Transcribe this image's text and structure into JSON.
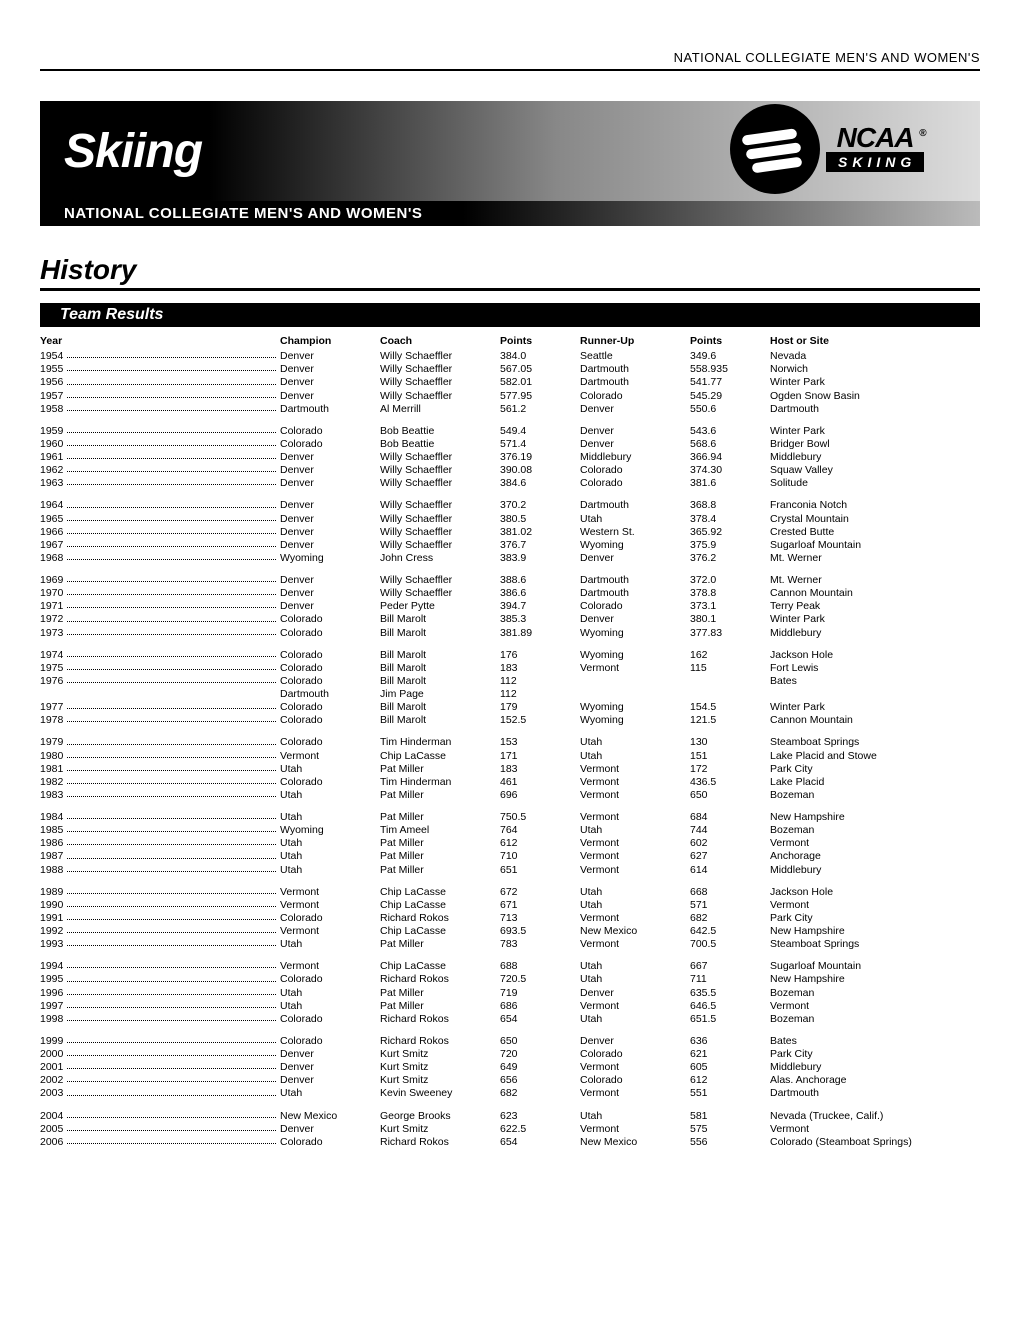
{
  "top_label": "NATIONAL COLLEGIATE MEN'S AND WOMEN'S",
  "banner_title": "Skiing",
  "subbanner": "NATIONAL COLLEGIATE MEN'S AND WOMEN'S",
  "logo_top": "NCAA",
  "logo_bottom": "SKIING",
  "section_title": "History",
  "subsection": "Team Results",
  "columns": [
    "Year",
    "Champion",
    "Coach",
    "Points",
    "Runner-Up",
    "Points",
    "Host or Site"
  ],
  "colors": {
    "text": "#000000",
    "bg": "#ffffff",
    "banner_dark": "#000000",
    "banner_light": "#dddddd"
  },
  "groups": [
    [
      [
        "1954",
        "Denver",
        "Willy Schaeffler",
        "384.0",
        "Seattle",
        "349.6",
        "Nevada"
      ],
      [
        "1955",
        "Denver",
        "Willy Schaeffler",
        "567.05",
        "Dartmouth",
        "558.935",
        "Norwich"
      ],
      [
        "1956",
        "Denver",
        "Willy Schaeffler",
        "582.01",
        "Dartmouth",
        "541.77",
        "Winter Park"
      ],
      [
        "1957",
        "Denver",
        "Willy Schaeffler",
        "577.95",
        "Colorado",
        "545.29",
        "Ogden Snow Basin"
      ],
      [
        "1958",
        "Dartmouth",
        "Al Merrill",
        "561.2",
        "Denver",
        "550.6",
        "Dartmouth"
      ]
    ],
    [
      [
        "1959",
        "Colorado",
        "Bob Beattie",
        "549.4",
        "Denver",
        "543.6",
        "Winter Park"
      ],
      [
        "1960",
        "Colorado",
        "Bob Beattie",
        "571.4",
        "Denver",
        "568.6",
        "Bridger Bowl"
      ],
      [
        "1961",
        "Denver",
        "Willy Schaeffler",
        "376.19",
        "Middlebury",
        "366.94",
        "Middlebury"
      ],
      [
        "1962",
        "Denver",
        "Willy Schaeffler",
        "390.08",
        "Colorado",
        "374.30",
        "Squaw Valley"
      ],
      [
        "1963",
        "Denver",
        "Willy Schaeffler",
        "384.6",
        "Colorado",
        "381.6",
        "Solitude"
      ]
    ],
    [
      [
        "1964",
        "Denver",
        "Willy Schaeffler",
        "370.2",
        "Dartmouth",
        "368.8",
        "Franconia Notch"
      ],
      [
        "1965",
        "Denver",
        "Willy Schaeffler",
        "380.5",
        "Utah",
        "378.4",
        "Crystal Mountain"
      ],
      [
        "1966",
        "Denver",
        "Willy Schaeffler",
        "381.02",
        "Western St.",
        "365.92",
        "Crested Butte"
      ],
      [
        "1967",
        "Denver",
        "Willy Schaeffler",
        "376.7",
        "Wyoming",
        "375.9",
        "Sugarloaf Mountain"
      ],
      [
        "1968",
        "Wyoming",
        "John Cress",
        "383.9",
        "Denver",
        "376.2",
        "Mt. Werner"
      ]
    ],
    [
      [
        "1969",
        "Denver",
        "Willy Schaeffler",
        "388.6",
        "Dartmouth",
        "372.0",
        "Mt. Werner"
      ],
      [
        "1970",
        "Denver",
        "Willy Schaeffler",
        "386.6",
        "Dartmouth",
        "378.8",
        "Cannon Mountain"
      ],
      [
        "1971",
        "Denver",
        "Peder Pytte",
        "394.7",
        "Colorado",
        "373.1",
        "Terry Peak"
      ],
      [
        "1972",
        "Colorado",
        "Bill Marolt",
        "385.3",
        "Denver",
        "380.1",
        "Winter Park"
      ],
      [
        "1973",
        "Colorado",
        "Bill Marolt",
        "381.89",
        "Wyoming",
        "377.83",
        "Middlebury"
      ]
    ],
    [
      [
        "1974",
        "Colorado",
        "Bill Marolt",
        "176",
        "Wyoming",
        "162",
        "Jackson Hole"
      ],
      [
        "1975",
        "Colorado",
        "Bill Marolt",
        "183",
        "Vermont",
        "115",
        "Fort Lewis"
      ],
      [
        "1976",
        "Colorado",
        "Bill Marolt",
        "112",
        "",
        "",
        "Bates"
      ],
      [
        "",
        "Dartmouth",
        "Jim Page",
        "112",
        "",
        "",
        ""
      ],
      [
        "1977",
        "Colorado",
        "Bill Marolt",
        "179",
        "Wyoming",
        "154.5",
        "Winter Park"
      ],
      [
        "1978",
        "Colorado",
        "Bill Marolt",
        "152.5",
        "Wyoming",
        "121.5",
        "Cannon Mountain"
      ]
    ],
    [
      [
        "1979",
        "Colorado",
        "Tim Hinderman",
        "153",
        "Utah",
        "130",
        "Steamboat Springs"
      ],
      [
        "1980",
        "Vermont",
        "Chip LaCasse",
        "171",
        "Utah",
        "151",
        "Lake Placid and Stowe"
      ],
      [
        "1981",
        "Utah",
        "Pat Miller",
        "183",
        "Vermont",
        "172",
        "Park City"
      ],
      [
        "1982",
        "Colorado",
        "Tim Hinderman",
        "461",
        "Vermont",
        "436.5",
        "Lake Placid"
      ],
      [
        "1983",
        "Utah",
        "Pat Miller",
        "696",
        "Vermont",
        "650",
        "Bozeman"
      ]
    ],
    [
      [
        "1984",
        "Utah",
        "Pat Miller",
        "750.5",
        "Vermont",
        "684",
        "New Hampshire"
      ],
      [
        "1985",
        "Wyoming",
        "Tim Ameel",
        "764",
        "Utah",
        "744",
        "Bozeman"
      ],
      [
        "1986",
        "Utah",
        "Pat Miller",
        "612",
        "Vermont",
        "602",
        "Vermont"
      ],
      [
        "1987",
        "Utah",
        "Pat Miller",
        "710",
        "Vermont",
        "627",
        "Anchorage"
      ],
      [
        "1988",
        "Utah",
        "Pat Miller",
        "651",
        "Vermont",
        "614",
        "Middlebury"
      ]
    ],
    [
      [
        "1989",
        "Vermont",
        "Chip LaCasse",
        "672",
        "Utah",
        "668",
        "Jackson Hole"
      ],
      [
        "1990",
        "Vermont",
        "Chip LaCasse",
        "671",
        "Utah",
        "571",
        "Vermont"
      ],
      [
        "1991",
        "Colorado",
        "Richard Rokos",
        "713",
        "Vermont",
        "682",
        "Park City"
      ],
      [
        "1992",
        "Vermont",
        "Chip LaCasse",
        "693.5",
        "New Mexico",
        "642.5",
        "New Hampshire"
      ],
      [
        "1993",
        "Utah",
        "Pat Miller",
        "783",
        "Vermont",
        "700.5",
        "Steamboat Springs"
      ]
    ],
    [
      [
        "1994",
        "Vermont",
        "Chip LaCasse",
        "688",
        "Utah",
        "667",
        "Sugarloaf Mountain"
      ],
      [
        "1995",
        "Colorado",
        "Richard Rokos",
        "720.5",
        "Utah",
        "711",
        "New Hampshire"
      ],
      [
        "1996",
        "Utah",
        "Pat Miller",
        "719",
        "Denver",
        "635.5",
        "Bozeman"
      ],
      [
        "1997",
        "Utah",
        "Pat Miller",
        "686",
        "Vermont",
        "646.5",
        "Vermont"
      ],
      [
        "1998",
        "Colorado",
        "Richard Rokos",
        "654",
        "Utah",
        "651.5",
        "Bozeman"
      ]
    ],
    [
      [
        "1999",
        "Colorado",
        "Richard Rokos",
        "650",
        "Denver",
        "636",
        "Bates"
      ],
      [
        "2000",
        "Denver",
        "Kurt Smitz",
        "720",
        "Colorado",
        "621",
        "Park City"
      ],
      [
        "2001",
        "Denver",
        "Kurt Smitz",
        "649",
        "Vermont",
        "605",
        "Middlebury"
      ],
      [
        "2002",
        "Denver",
        "Kurt Smitz",
        "656",
        "Colorado",
        "612",
        "Alas. Anchorage"
      ],
      [
        "2003",
        "Utah",
        "Kevin Sweeney",
        "682",
        "Vermont",
        "551",
        "Dartmouth"
      ]
    ],
    [
      [
        "2004",
        "New Mexico",
        "George Brooks",
        "623",
        "Utah",
        "581",
        "Nevada (Truckee, Calif.)"
      ],
      [
        "2005",
        "Denver",
        "Kurt Smitz",
        "622.5",
        "Vermont",
        "575",
        "Vermont"
      ],
      [
        "2006",
        "Colorado",
        "Richard Rokos",
        "654",
        "New Mexico",
        "556",
        "Colorado (Steamboat Springs)"
      ]
    ]
  ]
}
